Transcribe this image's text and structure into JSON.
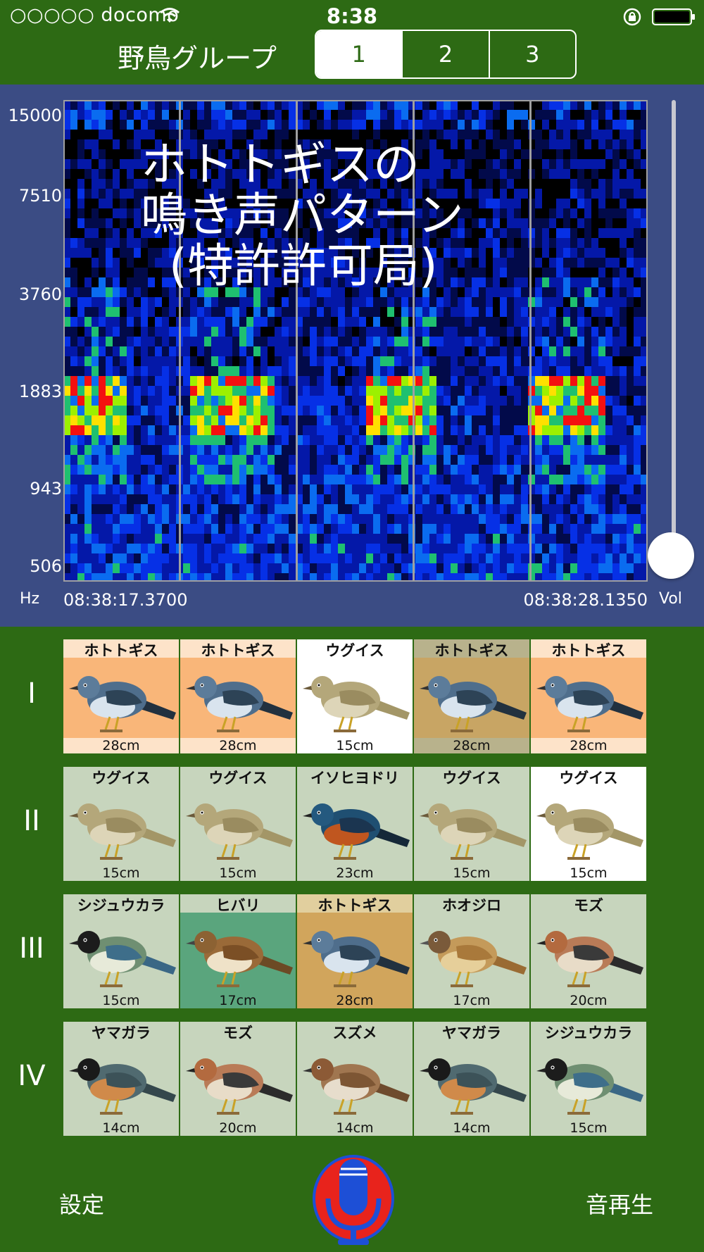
{
  "status_bar": {
    "carrier": "○○○○○ docomo",
    "time": "8:38"
  },
  "nav": {
    "title": "野鳥グループ",
    "segments": [
      "1",
      "2",
      "3"
    ],
    "selected_segment": "1"
  },
  "spectrogram": {
    "freq_labels": [
      "15000",
      "7510",
      "3760",
      "1883",
      "943",
      "506"
    ],
    "unit_label": "Hz",
    "start_time": "08:38:17.3700",
    "end_time": "08:38:28.1350",
    "volume_label": "Vol",
    "overlay_lines": [
      "ホトトギスの",
      "鳴き声パターン",
      "(特許許可局)"
    ]
  },
  "rows": [
    {
      "label": "I",
      "birds": [
        {
          "name": "ホトトギス",
          "size": "28cm",
          "style": "orange",
          "icon": "cuckoo-icon"
        },
        {
          "name": "ホトトギス",
          "size": "28cm",
          "style": "orange",
          "icon": "cuckoo-icon"
        },
        {
          "name": "ウグイス",
          "size": "15cm",
          "style": "white",
          "icon": "warbler-icon"
        },
        {
          "name": "ホトトギス",
          "size": "28cm",
          "style": "tan",
          "icon": "cuckoo-icon"
        },
        {
          "name": "ホトトギス",
          "size": "28cm",
          "style": "orange",
          "icon": "cuckoo-icon"
        }
      ]
    },
    {
      "label": "II",
      "birds": [
        {
          "name": "ウグイス",
          "size": "15cm",
          "style": "green",
          "icon": "warbler-icon"
        },
        {
          "name": "ウグイス",
          "size": "15cm",
          "style": "green",
          "icon": "warbler-icon"
        },
        {
          "name": "イソヒヨドリ",
          "size": "23cm",
          "style": "green",
          "icon": "rock-thrush-icon"
        },
        {
          "name": "ウグイス",
          "size": "15cm",
          "style": "green",
          "icon": "warbler-icon"
        },
        {
          "name": "ウグイス",
          "size": "15cm",
          "style": "white",
          "icon": "warbler-icon"
        }
      ]
    },
    {
      "label": "III",
      "birds": [
        {
          "name": "シジュウカラ",
          "size": "15cm",
          "style": "green",
          "icon": "great-tit-icon"
        },
        {
          "name": "ヒバリ",
          "size": "17cm",
          "style": "teal",
          "icon": "skylark-icon"
        },
        {
          "name": "ホトトギス",
          "size": "28cm",
          "style": "tan2",
          "icon": "cuckoo-icon"
        },
        {
          "name": "ホオジロ",
          "size": "17cm",
          "style": "green",
          "icon": "bunting-icon"
        },
        {
          "name": "モズ",
          "size": "20cm",
          "style": "green",
          "icon": "shrike-icon"
        }
      ]
    },
    {
      "label": "IV",
      "birds": [
        {
          "name": "ヤマガラ",
          "size": "14cm",
          "style": "green",
          "icon": "varied-tit-icon"
        },
        {
          "name": "モズ",
          "size": "20cm",
          "style": "green",
          "icon": "shrike-icon"
        },
        {
          "name": "スズメ",
          "size": "14cm",
          "style": "green",
          "icon": "sparrow-icon"
        },
        {
          "name": "ヤマガラ",
          "size": "14cm",
          "style": "green",
          "icon": "varied-tit-icon"
        },
        {
          "name": "シジュウカラ",
          "size": "15cm",
          "style": "green",
          "icon": "great-tit-icon"
        }
      ]
    }
  ],
  "toolbar": {
    "settings_label": "設定",
    "play_label": "音再生",
    "mic_icon": "microphone-icon"
  },
  "colors": {
    "background": "#2d6a14",
    "panel": "#3b4c84",
    "card_green": "#c7d5bd",
    "card_orange": "#f9b679",
    "mic_red": "#e8231c",
    "mic_blue": "#1d4fd6"
  }
}
